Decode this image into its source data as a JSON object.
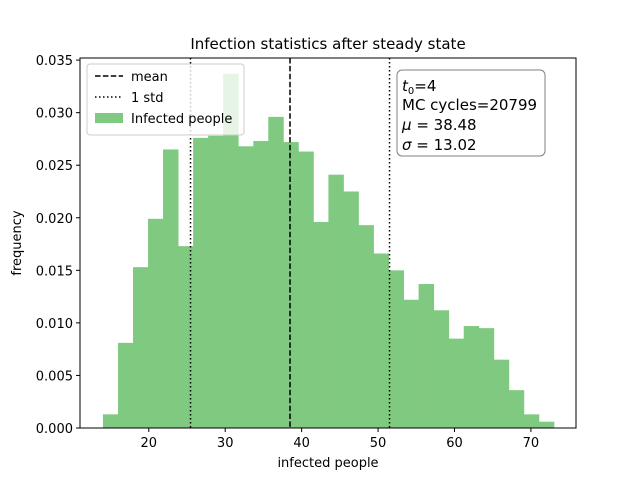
{
  "chart_data": {
    "type": "bar",
    "title": "Infection statistics after steady state",
    "xlabel": "infected people",
    "ylabel": "frequency",
    "xlim": [
      11.0,
      75.9
    ],
    "ylim": [
      0,
      0.0352
    ],
    "xticks": [
      20,
      30,
      40,
      50,
      60,
      70
    ],
    "xtick_labels": [
      "20",
      "30",
      "40",
      "50",
      "60",
      "70"
    ],
    "yticks": [
      0.0,
      0.005,
      0.01,
      0.015,
      0.02,
      0.025,
      0.03,
      0.035
    ],
    "ytick_labels": [
      "0.000",
      "0.005",
      "0.010",
      "0.015",
      "0.020",
      "0.025",
      "0.030",
      "0.035"
    ],
    "bar_color": "#80c980",
    "bins": {
      "left": 14.0,
      "width": 1.967,
      "values": [
        0.0013,
        0.0081,
        0.0153,
        0.0199,
        0.0265,
        0.0173,
        0.0276,
        0.0278,
        0.0337,
        0.0268,
        0.0273,
        0.0296,
        0.0272,
        0.0263,
        0.0196,
        0.0241,
        0.0225,
        0.0193,
        0.0166,
        0.015,
        0.0122,
        0.0137,
        0.0112,
        0.0085,
        0.0097,
        0.0095,
        0.0065,
        0.0036,
        0.0013,
        0.0006
      ]
    },
    "mean": 38.48,
    "std": 13.02,
    "legend": {
      "location": "upper-left",
      "entries": [
        {
          "label": "mean",
          "style": "dashed"
        },
        {
          "label": "1 std",
          "style": "dotted"
        },
        {
          "label": "Infected people",
          "style": "patch"
        }
      ]
    },
    "stats_box": {
      "t0_symbol": "t",
      "t0_sub": "0",
      "t0_value": "=4",
      "mc_cycles": "MC cycles=20799",
      "mu_symbol": "μ",
      "mu_value": " = 38.48",
      "sigma_symbol": "σ",
      "sigma_value": " = 13.02"
    },
    "grid": false
  }
}
